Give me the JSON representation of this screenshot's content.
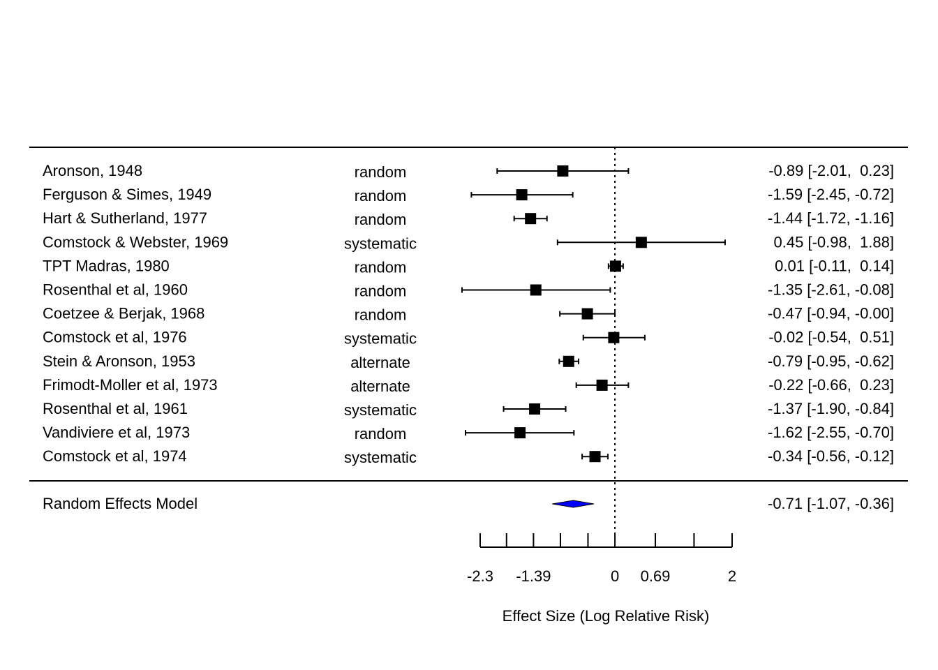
{
  "chart_data": {
    "type": "forest",
    "xlabel": "Effect Size (Log Relative Risk)",
    "xlim": [
      -2.3,
      2
    ],
    "xticks": [
      -2.3,
      -1.85,
      -1.39,
      -0.93,
      -0.46,
      0,
      0.69,
      1.35,
      2
    ],
    "xtick_labels": [
      {
        "value": -2.3,
        "label": "-2.3"
      },
      {
        "value": -1.39,
        "label": "-1.39"
      },
      {
        "value": 0,
        "label": "0"
      },
      {
        "value": 0.69,
        "label": "0.69"
      },
      {
        "value": 2,
        "label": "2"
      }
    ],
    "reference_line": 0,
    "studies": [
      {
        "name": "Aronson, 1948",
        "allocation": "random",
        "estimate": -0.89,
        "ci_low": -2.01,
        "ci_high": 0.23,
        "ci_text": "-0.89 [-2.01,  0.23]"
      },
      {
        "name": "Ferguson & Simes, 1949",
        "allocation": "random",
        "estimate": -1.59,
        "ci_low": -2.45,
        "ci_high": -0.72,
        "ci_text": "-1.59 [-2.45, -0.72]"
      },
      {
        "name": "Hart & Sutherland, 1977",
        "allocation": "random",
        "estimate": -1.44,
        "ci_low": -1.72,
        "ci_high": -1.16,
        "ci_text": "-1.44 [-1.72, -1.16]"
      },
      {
        "name": "Comstock & Webster, 1969",
        "allocation": "systematic",
        "estimate": 0.45,
        "ci_low": -0.98,
        "ci_high": 1.88,
        "ci_text": " 0.45 [-0.98,  1.88]"
      },
      {
        "name": "TPT Madras, 1980",
        "allocation": "random",
        "estimate": 0.01,
        "ci_low": -0.11,
        "ci_high": 0.14,
        "ci_text": " 0.01 [-0.11,  0.14]"
      },
      {
        "name": "Rosenthal et al, 1960",
        "allocation": "random",
        "estimate": -1.35,
        "ci_low": -2.61,
        "ci_high": -0.08,
        "ci_text": "-1.35 [-2.61, -0.08]"
      },
      {
        "name": "Coetzee & Berjak, 1968",
        "allocation": "random",
        "estimate": -0.47,
        "ci_low": -0.94,
        "ci_high": -0.0,
        "ci_text": "-0.47 [-0.94, -0.00]"
      },
      {
        "name": "Comstock et al, 1976",
        "allocation": "systematic",
        "estimate": -0.02,
        "ci_low": -0.54,
        "ci_high": 0.51,
        "ci_text": "-0.02 [-0.54,  0.51]"
      },
      {
        "name": "Stein & Aronson, 1953",
        "allocation": "alternate",
        "estimate": -0.79,
        "ci_low": -0.95,
        "ci_high": -0.62,
        "ci_text": "-0.79 [-0.95, -0.62]"
      },
      {
        "name": "Frimodt-Moller et al, 1973",
        "allocation": "alternate",
        "estimate": -0.22,
        "ci_low": -0.66,
        "ci_high": 0.23,
        "ci_text": "-0.22 [-0.66,  0.23]"
      },
      {
        "name": "Rosenthal et al, 1961",
        "allocation": "systematic",
        "estimate": -1.37,
        "ci_low": -1.9,
        "ci_high": -0.84,
        "ci_text": "-1.37 [-1.90, -0.84]"
      },
      {
        "name": "Vandiviere et al, 1973",
        "allocation": "random",
        "estimate": -1.62,
        "ci_low": -2.55,
        "ci_high": -0.7,
        "ci_text": "-1.62 [-2.55, -0.70]"
      },
      {
        "name": "Comstock et al, 1974",
        "allocation": "systematic",
        "estimate": -0.34,
        "ci_low": -0.56,
        "ci_high": -0.12,
        "ci_text": "-0.34 [-0.56, -0.12]"
      }
    ],
    "summary": {
      "name": "Random Effects Model",
      "estimate": -0.71,
      "ci_low": -1.07,
      "ci_high": -0.36,
      "ci_text": "-0.71 [-1.07, -0.36]",
      "color": "#0000ff"
    },
    "marker_color": "#000000"
  }
}
